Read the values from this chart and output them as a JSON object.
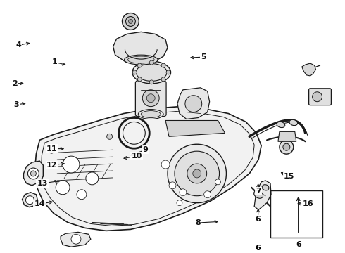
{
  "bg": "#ffffff",
  "lc": "#1a1a1a",
  "labels": [
    [
      1,
      0.155,
      0.245,
      0.195,
      0.258
    ],
    [
      2,
      0.04,
      0.33,
      0.072,
      0.33
    ],
    [
      3,
      0.045,
      0.415,
      0.078,
      0.408
    ],
    [
      4,
      0.05,
      0.178,
      0.09,
      0.168
    ],
    [
      5,
      0.59,
      0.225,
      0.545,
      0.228
    ],
    [
      6,
      0.75,
      0.87,
      0.75,
      0.82
    ],
    [
      7,
      0.75,
      0.76,
      0.75,
      0.72
    ],
    [
      8,
      0.575,
      0.885,
      0.64,
      0.88
    ],
    [
      9,
      0.42,
      0.595,
      0.37,
      0.62
    ],
    [
      10,
      0.395,
      0.62,
      0.35,
      0.63
    ],
    [
      11,
      0.148,
      0.59,
      0.19,
      0.59
    ],
    [
      12,
      0.148,
      0.655,
      0.192,
      0.648
    ],
    [
      13,
      0.12,
      0.728,
      0.173,
      0.718
    ],
    [
      14,
      0.112,
      0.81,
      0.157,
      0.8
    ],
    [
      15,
      0.84,
      0.7,
      0.81,
      0.68
    ],
    [
      16,
      0.895,
      0.81,
      0.858,
      0.808
    ]
  ]
}
